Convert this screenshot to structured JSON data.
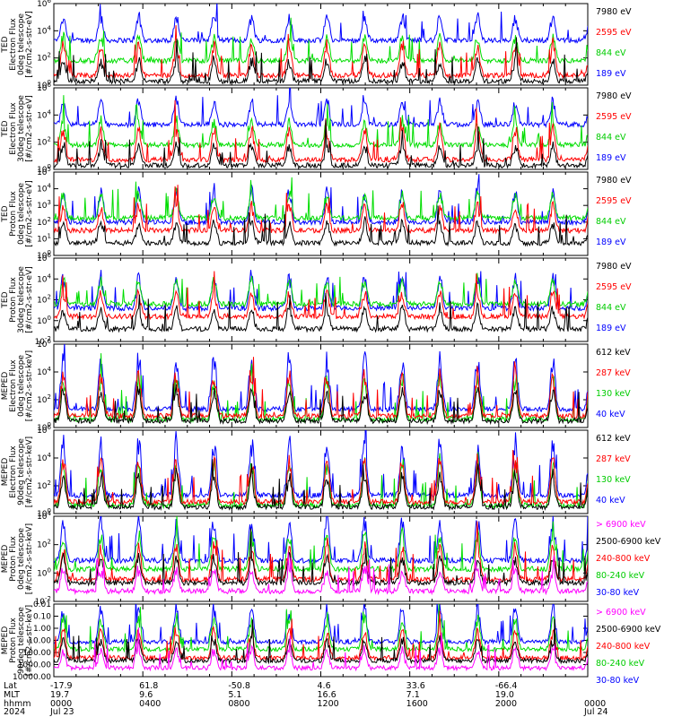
{
  "chart_data": [
    {
      "type": "line",
      "panel": "ted-electron-0deg",
      "ylabel": [
        "TED",
        "Electron Flux",
        "0deg telescope",
        "[#/cm2-s-str-eV]"
      ],
      "yscale": "log",
      "ylim": [
        1,
        1000000
      ],
      "ytick_labels": [
        "10^0",
        "10^2",
        "10^4",
        "10^6"
      ],
      "series": [
        {
          "name": "7980 eV",
          "color": "#000000"
        },
        {
          "name": "2595 eV",
          "color": "#ff0000"
        },
        {
          "name": "844 eV",
          "color": "#00dd00"
        },
        {
          "name": "189 eV",
          "color": "#0000ff"
        }
      ]
    },
    {
      "type": "line",
      "panel": "ted-electron-30deg",
      "ylabel": [
        "TED",
        "Electron Flux",
        "30deg telescope",
        "[#/cm2-s-str-eV]"
      ],
      "yscale": "log",
      "ylim": [
        1,
        1000000
      ],
      "ytick_labels": [
        "10^0",
        "10^2",
        "10^4",
        "10^6"
      ],
      "series": [
        {
          "name": "7980 eV",
          "color": "#000000"
        },
        {
          "name": "2595 eV",
          "color": "#ff0000"
        },
        {
          "name": "844 eV",
          "color": "#00dd00"
        },
        {
          "name": "189 eV",
          "color": "#0000ff"
        }
      ]
    },
    {
      "type": "line",
      "panel": "ted-proton-0deg",
      "ylabel": [
        "TED",
        "Proton Flux",
        "0deg telescope",
        "[#/cm2-s-str-eV]"
      ],
      "yscale": "log",
      "ylim": [
        1,
        100000
      ],
      "ytick_labels": [
        "10^0",
        "10^1",
        "10^2",
        "10^3",
        "10^4",
        "10^5"
      ],
      "series": [
        {
          "name": "7980 eV",
          "color": "#000000"
        },
        {
          "name": "2595 eV",
          "color": "#ff0000"
        },
        {
          "name": "844 eV",
          "color": "#00dd00"
        },
        {
          "name": "189 eV",
          "color": "#0000ff"
        }
      ]
    },
    {
      "type": "line",
      "panel": "ted-proton-30deg",
      "ylabel": [
        "TED",
        "Proton Flux",
        "30deg telescope",
        "[#/cm2-s-str-eV]"
      ],
      "yscale": "log",
      "ylim": [
        0.01,
        1000000
      ],
      "ytick_labels": [
        "10^-2",
        "10^0",
        "10^2",
        "10^4",
        "10^6"
      ],
      "series": [
        {
          "name": "7980 eV",
          "color": "#000000"
        },
        {
          "name": "2595 eV",
          "color": "#ff0000"
        },
        {
          "name": "844 eV",
          "color": "#00dd00"
        },
        {
          "name": "189 eV",
          "color": "#0000ff"
        }
      ]
    },
    {
      "type": "line",
      "panel": "meped-electron-0deg",
      "ylabel": [
        "MEPED",
        "Electron Flux",
        "0deg telescope",
        "[#/cm2-s-str-keV]"
      ],
      "yscale": "log",
      "ylim": [
        1,
        1000000
      ],
      "ytick_labels": [
        "10^0",
        "10^2",
        "10^4",
        "10^6"
      ],
      "series": [
        {
          "name": "612 keV",
          "color": "#000000"
        },
        {
          "name": "287 keV",
          "color": "#ff0000"
        },
        {
          "name": "130 keV",
          "color": "#00dd00"
        },
        {
          "name": "40 keV",
          "color": "#0000ff"
        }
      ]
    },
    {
      "type": "line",
      "panel": "meped-electron-90deg",
      "ylabel": [
        "MEPED",
        "Electron Flux",
        "90deg telescope",
        "[#/cm2-s-str-keV]"
      ],
      "yscale": "log",
      "ylim": [
        1,
        1000000
      ],
      "ytick_labels": [
        "10^0",
        "10^2",
        "10^4",
        "10^6"
      ],
      "series": [
        {
          "name": "612 keV",
          "color": "#000000"
        },
        {
          "name": "287 keV",
          "color": "#ff0000"
        },
        {
          "name": "130 keV",
          "color": "#00dd00"
        },
        {
          "name": "40 keV",
          "color": "#0000ff"
        }
      ]
    },
    {
      "type": "line",
      "panel": "meped-proton-0deg",
      "ylabel": [
        "MEPED",
        "Proton Flux",
        "0deg telescope",
        "[#/cm2-s-str-keV]"
      ],
      "yscale": "log",
      "ylim": [
        0.01,
        100000
      ],
      "ytick_labels": [
        "10^-2",
        "10^0",
        "10^2",
        "10^4"
      ],
      "series": [
        {
          "name": "> 6900 keV",
          "color": "#ff00ff"
        },
        {
          "name": "2500-6900 keV",
          "color": "#000000"
        },
        {
          "name": "240-800 keV",
          "color": "#ff0000"
        },
        {
          "name": "80-240 keV",
          "color": "#00dd00"
        },
        {
          "name": "30-80 keV",
          "color": "#0000ff"
        }
      ]
    },
    {
      "type": "line",
      "panel": "meped-proton-90deg",
      "ylabel": [
        "MEPED",
        "Proton Flux",
        "90deg telescope",
        "[#/cm2-s-str-keV]"
      ],
      "yscale": "log",
      "ylim": [
        0.01,
        10000
      ],
      "ytick_labels": [
        "10000.00",
        "1000.00",
        "100.00",
        "10.00",
        "1.00",
        "0.10",
        "0.01"
      ],
      "series": [
        {
          "name": "> 6900 keV",
          "color": "#ff00ff"
        },
        {
          "name": "2500-6900 keV",
          "color": "#000000"
        },
        {
          "name": "240-800 keV",
          "color": "#ff0000"
        },
        {
          "name": "80-240 keV",
          "color": "#00dd00"
        },
        {
          "name": "30-80 keV",
          "color": "#0000ff"
        }
      ]
    }
  ],
  "time_axis": {
    "row_labels": [
      "Lat",
      "MLT",
      "hhmm",
      "2024"
    ],
    "columns": [
      {
        "lat": "-17.9",
        "mlt": "19.7",
        "hhmm": "0000",
        "date": "Jul 23"
      },
      {
        "lat": "61.8",
        "mlt": "9.6",
        "hhmm": "0400",
        "date": ""
      },
      {
        "lat": "-50.8",
        "mlt": "5.1",
        "hhmm": "0800",
        "date": ""
      },
      {
        "lat": "4.6",
        "mlt": "16.6",
        "hhmm": "1200",
        "date": ""
      },
      {
        "lat": "33.6",
        "mlt": "7.1",
        "hhmm": "1600",
        "date": ""
      },
      {
        "lat": "-66.4",
        "mlt": "19.0",
        "hhmm": "2000",
        "date": ""
      },
      {
        "lat": "",
        "mlt": "",
        "hhmm": "0000",
        "date": "Jul 24"
      }
    ]
  }
}
